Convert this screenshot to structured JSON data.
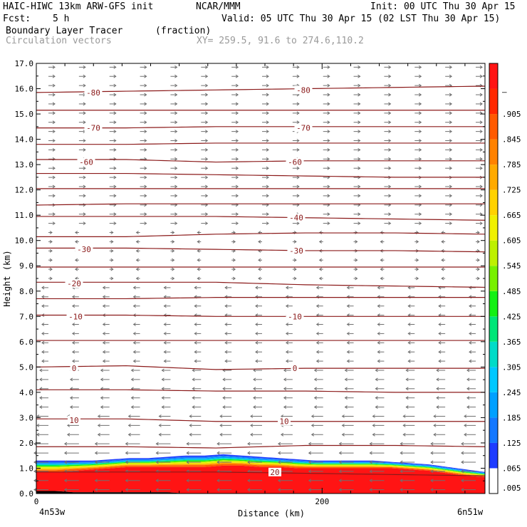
{
  "header": {
    "model": "HAIC-HIWC 13km ARW-GFS init",
    "org": "NCAR/MMM",
    "init": "Init: 00 UTC Thu 30 Apr 15",
    "fcst_label": "Fcst:",
    "fcst_value": "5 h",
    "valid": "Valid: 05 UTC Thu 30 Apr 15 (02 LST Thu 30 Apr 15)",
    "field": "Boundary Layer Tracer",
    "units": "(fraction)",
    "vectors": "Circulation vectors",
    "xy": "XY= 259.5, 91.6 to 274.6,110.2"
  },
  "chart_data": {
    "type": "heatmap",
    "xlabel": "Distance (km)",
    "ylabel": "Height (km)",
    "xlim": [
      0,
      314
    ],
    "ylim": [
      0,
      17
    ],
    "x_ticks": [
      0,
      200
    ],
    "y_ticks": [
      "0.0",
      "1.0",
      "2.0",
      "3.0",
      "4.0",
      "5.0",
      "6.0",
      "7.0",
      "8.0",
      "9.0",
      "10.0",
      "11.0",
      "12.0",
      "13.0",
      "14.0",
      "15.0",
      "16.0",
      "17.0"
    ],
    "x_endpoints": {
      "left": "4n53w",
      "right": "6n51w"
    },
    "grid": false,
    "colorbar": {
      "labels": [
        ".005",
        ".065",
        ".125",
        ".185",
        ".245",
        ".305",
        ".365",
        ".425",
        ".485",
        ".545",
        ".605",
        ".665",
        ".725",
        ".785",
        ".845",
        ".905",
        "–"
      ],
      "colors": [
        "#ffffff",
        "#1e3cff",
        "#1478ff",
        "#00a0ff",
        "#00c8ff",
        "#00dcc8",
        "#00e678",
        "#14f014",
        "#78f000",
        "#bef000",
        "#f0f000",
        "#ffd200",
        "#ffaa00",
        "#ff8200",
        "#ff5a00",
        "#ff2800",
        "#ff1414"
      ]
    },
    "temperature_contours": {
      "levels": [
        -80,
        -70,
        -60,
        -40,
        -30,
        -20,
        -10,
        0,
        10,
        20
      ],
      "labels": [
        {
          "text": "-80",
          "x": 80,
          "y": 15.85
        },
        {
          "text": "-80",
          "x": 375,
          "y": 15.95
        },
        {
          "text": "-70",
          "x": 80,
          "y": 14.45
        },
        {
          "text": "-70",
          "x": 375,
          "y": 14.45
        },
        {
          "text": "-60",
          "x": 70,
          "y": 13.1
        },
        {
          "text": "-60",
          "x": 363,
          "y": 13.1
        },
        {
          "text": "-40",
          "x": 365,
          "y": 10.9
        },
        {
          "text": "-30",
          "x": 67,
          "y": 9.65
        },
        {
          "text": "-30",
          "x": 365,
          "y": 9.6
        },
        {
          "text": "-20",
          "x": 53,
          "y": 8.3
        },
        {
          "text": "-10",
          "x": 55,
          "y": 7.0
        },
        {
          "text": "-10",
          "x": 363,
          "y": 7.0
        },
        {
          "text": "0",
          "x": 53,
          "y": 4.95
        },
        {
          "text": "0",
          "x": 363,
          "y": 4.95
        },
        {
          "text": "10",
          "x": 53,
          "y": 2.9
        },
        {
          "text": "10",
          "x": 348,
          "y": 2.85
        },
        {
          "text": "20",
          "x": 335,
          "y": 0.85
        }
      ],
      "lines_km": [
        [
          15.85,
          15.9,
          15.95,
          16.0,
          16.05,
          16.1
        ],
        [
          15.15,
          15.15,
          15.15,
          15.15,
          15.15,
          15.15
        ],
        [
          14.45,
          14.45,
          14.5,
          14.5,
          14.5,
          14.5
        ],
        [
          13.8,
          13.8,
          13.85,
          13.85,
          13.85,
          13.85
        ],
        [
          13.2,
          13.2,
          13.1,
          13.15,
          13.15,
          13.15
        ],
        [
          12.65,
          12.65,
          12.6,
          12.55,
          12.5,
          12.5
        ],
        [
          12.05,
          12.05,
          12.05,
          12.05,
          12.05,
          12.05
        ],
        [
          11.4,
          11.45,
          11.45,
          11.45,
          11.45,
          11.45
        ],
        [
          10.95,
          10.95,
          10.95,
          10.9,
          10.85,
          10.8
        ],
        [
          10.15,
          10.15,
          10.25,
          10.3,
          10.3,
          10.25
        ],
        [
          9.7,
          9.7,
          9.65,
          9.6,
          9.6,
          9.55
        ],
        [
          8.95,
          8.95,
          8.95,
          8.95,
          8.95,
          8.95
        ],
        [
          8.35,
          8.35,
          8.35,
          8.25,
          8.2,
          8.15
        ],
        [
          7.7,
          7.7,
          7.75,
          7.75,
          7.75,
          7.75
        ],
        [
          7.05,
          7.05,
          7.0,
          7.0,
          7.0,
          7.0
        ],
        [
          6.05,
          6.05,
          6.05,
          6.05,
          6.05,
          6.05
        ],
        [
          5.0,
          5.05,
          4.9,
          4.95,
          4.95,
          4.95
        ],
        [
          4.1,
          4.1,
          4.05,
          4.05,
          4.0,
          4.0
        ],
        [
          2.95,
          2.95,
          2.85,
          2.85,
          2.85,
          2.85
        ],
        [
          1.85,
          1.85,
          1.8,
          1.9,
          1.9,
          1.85
        ],
        [
          0.85,
          0.85,
          0.85,
          0.8,
          0.75,
          0.7
        ]
      ]
    },
    "tracer_top_km": [
      1.3,
      1.3,
      1.3,
      1.3,
      1.35,
      1.4,
      1.4,
      1.45,
      1.5,
      1.5,
      1.55,
      1.5,
      1.45,
      1.4,
      1.35,
      1.3,
      1.3,
      1.3,
      1.3,
      1.25,
      1.2,
      1.15,
      1.05,
      0.95,
      0.85
    ],
    "tracer_red_top_km": [
      0.85,
      0.85,
      0.9,
      0.95,
      1.0,
      1.05,
      1.05,
      1.05,
      1.05,
      1.05,
      1.1,
      1.1,
      1.05,
      1.05,
      1.0,
      1.0,
      1.0,
      1.0,
      1.0,
      1.0,
      0.95,
      0.9,
      0.8,
      0.7,
      0.65
    ],
    "terrain_km": [
      0.1,
      0.1,
      0.05,
      0.05,
      0.05,
      0.05,
      0.05,
      0.05,
      0.0,
      0.0,
      0.0,
      0.0,
      0.0,
      0.0,
      0.0,
      0.0,
      0.0,
      0.0,
      0.0,
      0.0,
      0.0,
      0.0,
      0.0,
      0.0,
      0.0
    ]
  }
}
